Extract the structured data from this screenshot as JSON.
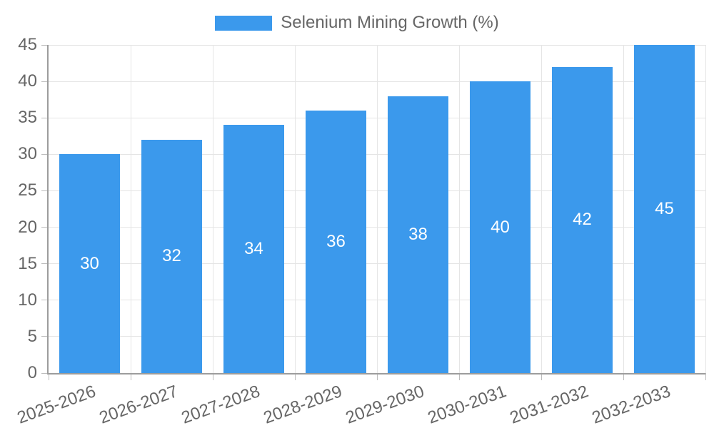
{
  "legend": {
    "label": "Selenium Mining Growth (%)"
  },
  "chart_data": {
    "type": "bar",
    "title": "Selenium Mining Growth (%)",
    "categories": [
      "2025-2026",
      "2026-2027",
      "2027-2028",
      "2028-2029",
      "2029-2030",
      "2030-2031",
      "2031-2032",
      "2032-2033"
    ],
    "values": [
      30,
      32,
      34,
      36,
      38,
      40,
      42,
      45
    ],
    "xlabel": "",
    "ylabel": "",
    "ylim": [
      0,
      45
    ],
    "ytick_step": 5,
    "grid": true,
    "legend_position": "top",
    "colors": {
      "bar": "#3b99ec",
      "value_label": "#ffffff",
      "axis_text": "#666666",
      "gridline": "#e5e5e5",
      "axis_line": "#9c9c9c",
      "tick_mark": "#bdbdbd"
    }
  }
}
